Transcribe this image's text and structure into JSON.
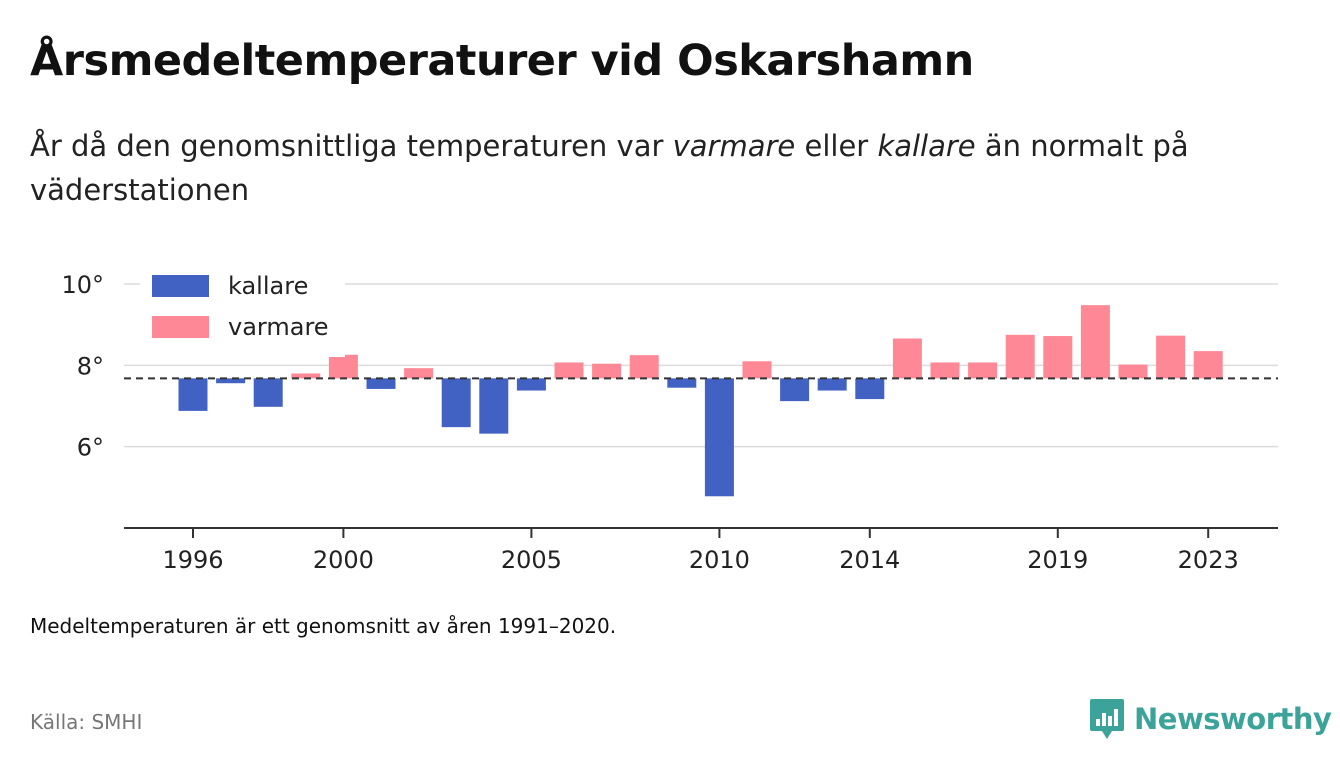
{
  "title": "Årsmedeltemperaturer vid Oskarshamn",
  "subtitle": {
    "part1": "År då den genomsnittliga temperaturen var ",
    "warm_word": "varmare",
    "part2": " eller ",
    "cold_word": "kallare",
    "part3": " än normalt på väderstationen"
  },
  "footnote": "Medeltemperaturen är ett genomsnitt av åren 1991–2020.",
  "source": "Källa: SMHI",
  "brand": {
    "name": "Newsworthy",
    "icon": "newsworthy-logo-icon",
    "color": "#3ba39a"
  },
  "colors": {
    "cold": "#4262c3",
    "warm": "#ff8896",
    "grid": "#dcdcdc",
    "baseline": "#333333"
  },
  "chart_data": {
    "type": "bar",
    "baseline": 7.68,
    "ylim": [
      4.0,
      10.0
    ],
    "yticks": [
      6,
      8,
      10
    ],
    "ytick_labels": [
      "6°",
      "8°",
      "10°"
    ],
    "xticks": [
      1996,
      2000,
      2005,
      2010,
      2014,
      2019,
      2023
    ],
    "xtick_labels": [
      "1996",
      "2000",
      "2005",
      "2010",
      "2014",
      "2019",
      "2023"
    ],
    "legend": {
      "placement": "top-left",
      "entries": [
        {
          "name": "kallare",
          "color": "#4262c3"
        },
        {
          "name": "varmare",
          "color": "#ff8896"
        }
      ]
    },
    "categories": [
      1996,
      1997,
      1998,
      1999,
      2000,
      2001,
      2002,
      2003,
      2004,
      2005,
      2006,
      2007,
      2008,
      2009,
      2010,
      2011,
      2012,
      2013,
      2014,
      2015,
      2016,
      2017,
      2018,
      2019,
      2020,
      2021,
      2022,
      2023
    ],
    "values": [
      6.88,
      7.56,
      6.98,
      7.8,
      8.26,
      7.42,
      7.93,
      6.48,
      6.32,
      7.38,
      8.07,
      8.04,
      8.25,
      7.45,
      4.78,
      8.1,
      7.12,
      7.38,
      7.17,
      8.66,
      8.07,
      8.07,
      8.75,
      8.72,
      9.48,
      8.02,
      8.73,
      8.35
    ]
  }
}
